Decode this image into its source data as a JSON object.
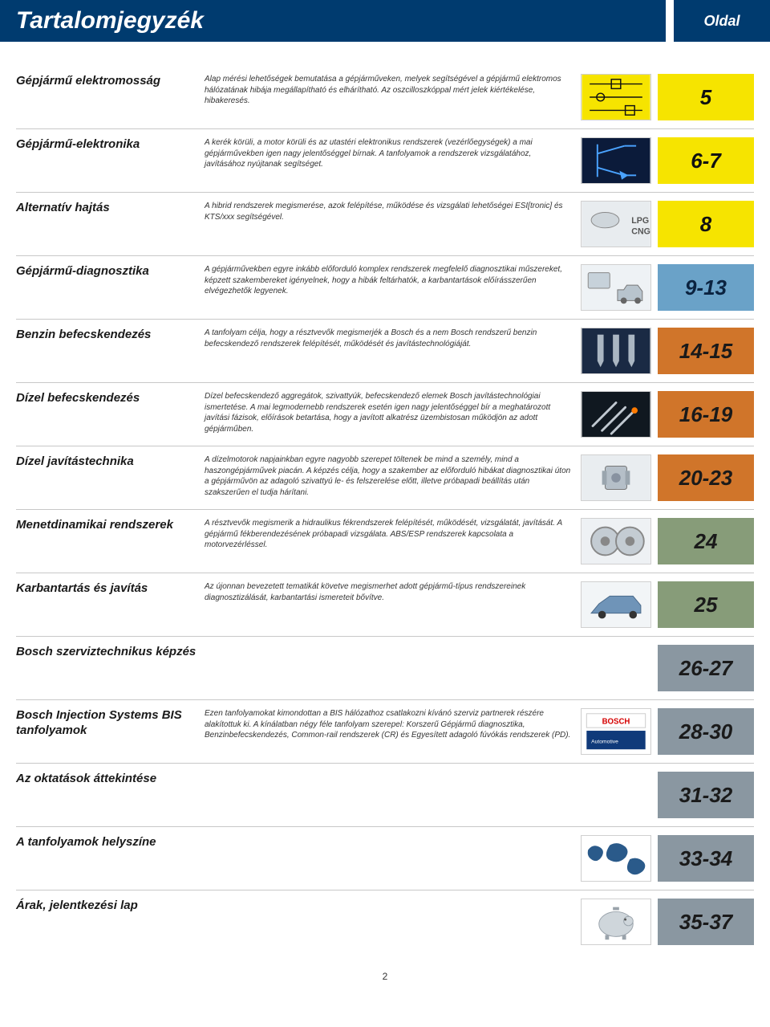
{
  "header": {
    "title": "Tartalomjegyzék",
    "page_label": "Oldal"
  },
  "rows": [
    {
      "title": "Gépjármű elektromosság",
      "desc": "Alap mérési lehetőségek bemutatása a gépjárműveken, melyek segítségével a gépjármű elektromos hálózatának hibája megállapítható és elhárítható. Az oszcilloszkóppal mért jelek kiértékelése, hibakeresés.",
      "page": "5",
      "thumb": "circuit",
      "page_bg": "#f6e400",
      "page_color": "#111111"
    },
    {
      "title": "Gépjármű-elektronika",
      "desc": "A kerék körüli, a motor körüli és az utastéri elektronikus rendszerek (vezérlőegységek) a mai gépjárművekben igen nagy jelentőséggel bírnak. A tanfolyamok a rendszerek vizsgálatához, javításához nyújtanak segítséget.",
      "page": "6-7",
      "thumb": "transistor",
      "page_bg": "#f6e400",
      "page_color": "#111111"
    },
    {
      "title": "Alternatív hajtás",
      "desc": "A hibrid rendszerek megismerése, azok felépítése, működése és vizsgálati lehetőségei ESI[tronic] és KTS/xxx segítségével.",
      "page": "8",
      "thumb": "lpg",
      "page_bg": "#f6e400",
      "page_color": "#111111"
    },
    {
      "title": "Gépjármű-diagnosztika",
      "desc": "A gépjárművekben egyre inkább előforduló komplex rendszerek megfelelő diagnosztikai műszereket, képzett szakembereket igényelnek, hogy a hibák feltárhatók, a karbantartások előírásszerűen elvégezhetők legyenek.",
      "page": "9-13",
      "thumb": "diag",
      "page_bg": "#6aa2c8",
      "page_color": "#0b2340"
    },
    {
      "title": "Benzin befecskendezés",
      "desc": "A tanfolyam célja, hogy a résztvevők megismerjék a Bosch és a nem Bosch rendszerű benzin befecskendező rendszerek felépítését, működését és javítástechnológiáját.",
      "page": "14-15",
      "thumb": "injector",
      "page_bg": "#d0752a",
      "page_color": "#1a1a1a"
    },
    {
      "title": "Dízel befecskendezés",
      "desc": "Dízel befecskendező aggregátok, szivattyúk, befecskendező elemek Bosch javítástechnológiai ismertetése. A mai legmodernebb rendszerek esetén igen nagy jelentőséggel bír a meghatározott javítási fázisok, előírások betartása, hogy a javított alkatrész üzembistosan működjön az adott gépjárműben.",
      "page": "16-19",
      "thumb": "glow",
      "page_bg": "#d0752a",
      "page_color": "#1a1a1a"
    },
    {
      "title": "Dízel javítástechnika",
      "desc": "A dízelmotorok napjainkban egyre nagyobb szerepet töltenek be mind a személy, mind a haszongépjárművek piacán. A képzés célja, hogy a szakember az előforduló hibákat diagnosztikai úton a gépjárművön az adagoló szivattyú le- és felszerelése előtt, illetve próbapadi beállítás után szakszerűen el tudja hárítani.",
      "page": "20-23",
      "thumb": "pump",
      "page_bg": "#d0752a",
      "page_color": "#1a1a1a"
    },
    {
      "title": "Menetdinamikai rendszerek",
      "desc": "A résztvevők megismerik a hidraulikus fékrendszerek felépítését, működését, vizsgálatát, javítását. A gépjármű fékberendezésének próbapadi vizsgálata. ABS/ESP rendszerek kapcsolata a motorvezérléssel.",
      "page": "24",
      "thumb": "brake",
      "page_bg": "#879c79",
      "page_color": "#1a1a1a"
    },
    {
      "title": "Karbantartás és javítás",
      "desc": "Az újonnan bevezetett tematikát követve megismerhet adott gépjármű-típus rendszereinek diagnosztizálását, karbantartási ismereteit bővítve.",
      "page": "25",
      "thumb": "car",
      "page_bg": "#879c79",
      "page_color": "#1a1a1a"
    },
    {
      "title": "Bosch szerviztechnikus képzés",
      "desc": "",
      "page": "26-27",
      "thumb": "",
      "page_bg": "#8a97a1",
      "page_color": "#1a1a1a"
    },
    {
      "title": "Bosch Injection Systems BIS tanfolyamok",
      "desc": "Ezen tanfolyamokat kimondottan a BIS hálózathoz csatlakozni kívánó szerviz partnerek részére alakítottuk ki. A kínálatban négy féle tanfolyam szerepel: Korszerű Gépjármű diagnosztika, Benzinbefecskendezés, Common-rail rendszerek (CR) és Egyesített adagoló fúvókás rendszerek (PD).",
      "page": "28-30",
      "thumb": "bosch",
      "page_bg": "#8a97a1",
      "page_color": "#1a1a1a"
    },
    {
      "title": "Az oktatások áttekintése",
      "desc": "",
      "page": "31-32",
      "thumb": "",
      "page_bg": "#8a97a1",
      "page_color": "#1a1a1a"
    },
    {
      "title": "A tanfolyamok helyszíne",
      "desc": "",
      "page": "33-34",
      "thumb": "world",
      "page_bg": "#8a97a1",
      "page_color": "#1a1a1a"
    },
    {
      "title": "Árak, jelentkezési lap",
      "desc": "",
      "page": "35-37",
      "thumb": "piggy",
      "page_bg": "#8a97a1",
      "page_color": "#1a1a1a"
    }
  ],
  "footer": {
    "page_number": "2"
  },
  "thumbs": {
    "circuit": "<svg class='thumb-svg' viewBox='0 0 88 58'><rect width='88' height='58' fill='#f6e400'/><g stroke='#111' stroke-width='1.5' fill='none'><line x1='10' y1='12' x2='78' y2='12'/><line x1='10' y1='29' x2='78' y2='29'/><line x1='10' y1='46' x2='78' y2='46'/><rect x='38' y='6' width='12' height='12'/><circle cx='24' cy='29' r='5'/><rect x='56' y='40' width='12' height='12'/></g></svg>",
    "transistor": "<svg class='thumb-svg' viewBox='0 0 88 58'><rect width='88' height='58' fill='#0b1b3a'/><g stroke='#4aa3ff' stroke-width='2' fill='none'><line x1='20' y1='8' x2='20' y2='50'/><line x1='20' y1='20' x2='55' y2='10'/><line x1='20' y1='38' x2='55' y2='48'/><polygon points='50,44 58,48 52,52' fill='#4aa3ff'/><line x1='55' y1='10' x2='70' y2='10'/><line x1='55' y1='48' x2='70' y2='48'/></g></svg>",
    "lpg": "<svg class='thumb-svg' viewBox='0 0 88 58'><rect width='88' height='58' fill='#e8ecef'/><ellipse cx='30' cy='24' rx='18' ry='10' fill='#cfd6db' stroke='#888'/><text x='64' y='28' font-size='11' font-weight='bold' fill='#555'>LPG</text><text x='64' y='42' font-size='11' font-weight='bold' fill='#555'>CNG</text></svg>",
    "diag": "<svg class='thumb-svg' viewBox='0 0 88 58'><rect width='88' height='58' fill='#eef2f5'/><rect x='8' y='10' width='28' height='20' rx='2' fill='#c7d2da' stroke='#888'/><path d='M46 46 h32 v-12 l-6-8 h-14 l-4 6 h-8 z' fill='#b8c4cd' stroke='#777'/><circle cx='54' cy='46' r='4' fill='#666'/><circle cx='72' cy='46' r='4' fill='#666'/></svg>",
    "injector": "<svg class='thumb-svg' viewBox='0 0 88 58'><rect width='88' height='58' fill='#1a2a44'/><rect x='20' y='8' width='8' height='34' fill='#aab6c2'/><rect x='40' y='8' width='8' height='34' fill='#aab6c2'/><rect x='60' y='8' width='8' height='34' fill='#aab6c2'/><polygon points='20,42 28,42 24,50' fill='#aab6c2'/><polygon points='40,42 48,42 44,50' fill='#aab6c2'/><polygon points='60,42 68,42 64,50' fill='#aab6c2'/></svg>",
    "glow": "<svg class='thumb-svg' viewBox='0 0 88 58'><rect width='88' height='58' fill='#101820'/><g stroke='#c0c8d0' stroke-width='3' stroke-linecap='round'><line x1='14' y1='44' x2='44' y2='14'/><line x1='26' y1='50' x2='56' y2='20'/><line x1='38' y1='54' x2='68' y2='24'/></g><circle cx='68' cy='24' r='4' fill='#ff7a00'/></svg>",
    "pump": "<svg class='thumb-svg' viewBox='0 0 88 58'><rect width='88' height='58' fill='#e9edf0'/><rect x='30' y='14' width='28' height='30' rx='3' fill='#b5bfc8' stroke='#777'/><rect x='26' y='20' width='6' height='18' fill='#9aa5ae'/><rect x='56' y='20' width='6' height='18' fill='#9aa5ae'/><circle cx='44' cy='29' r='6' fill='#8892a0'/></svg>",
    "brake": "<svg class='thumb-svg' viewBox='0 0 88 58'><rect width='88' height='58' fill='#eef1f4'/><circle cx='30' cy='29' r='18' fill='#c4ccd3' stroke='#888' stroke-width='2'/><circle cx='30' cy='29' r='6' fill='#888'/><circle cx='62' cy='29' r='18' fill='#c4ccd3' stroke='#888' stroke-width='2'/><circle cx='62' cy='29' r='6' fill='#888'/></svg>",
    "car": "<svg class='thumb-svg' viewBox='0 0 88 58'><rect width='88' height='58' fill='#f2f5f7'/><path d='M12 40 h64 v-10 l-10-12 h-30 l-14 10 z' fill='#6f94b8' stroke='#4a6a8a'/><circle cx='26' cy='42' r='5' fill='#333'/><circle cx='66' cy='42' r='5' fill='#333'/></svg>",
    "bosch": "<svg class='thumb-svg' viewBox='0 0 88 58'><rect width='88' height='58' fill='#ffffff'/><rect x='6' y='6' width='76' height='18' fill='#fff' stroke='#ccc'/><text x='44' y='19' font-size='10' font-weight='bold' fill='#d50000' text-anchor='middle'>BOSCH</text><rect x='6' y='28' width='76' height='24' fill='#103a7a'/><text x='12' y='44' font-size='7' fill='#fff'>Automotive</text></svg>",
    "world": "<svg class='thumb-svg' viewBox='0 0 88 58'><rect width='88' height='58' fill='#fff'/><g fill='#2a5a8a'><path d='M8 18 q6 -8 14 -4 q8 4 4 12 q-6 10 -14 4 q-6 -4 -4 -12z'/><path d='M36 12 q10 -6 20 2 q6 6 0 14 q-10 10 -22 2 q-6 -6 2 -18z'/><path d='M62 30 q10 -4 18 4 q4 6 -2 12 q-10 8 -18 0 q-4 -6 2 -16z'/></g></svg>",
    "piggy": "<svg class='thumb-svg' viewBox='0 0 88 58'><rect width='88' height='58' fill='#fff'/><ellipse cx='44' cy='32' rx='22' ry='16' fill='#cfd6db' stroke='#9aa3ab'/><circle cx='60' cy='28' r='6' fill='#cfd6db' stroke='#9aa3ab'/><rect x='40' y='10' width='8' height='4' fill='#9aa3ab'/><rect x='30' y='46' width='5' height='6' fill='#9aa3ab'/><rect x='52' y='46' width='5' height='6' fill='#9aa3ab'/><circle cx='56' cy='26' r='1.5' fill='#555'/></svg>"
  }
}
